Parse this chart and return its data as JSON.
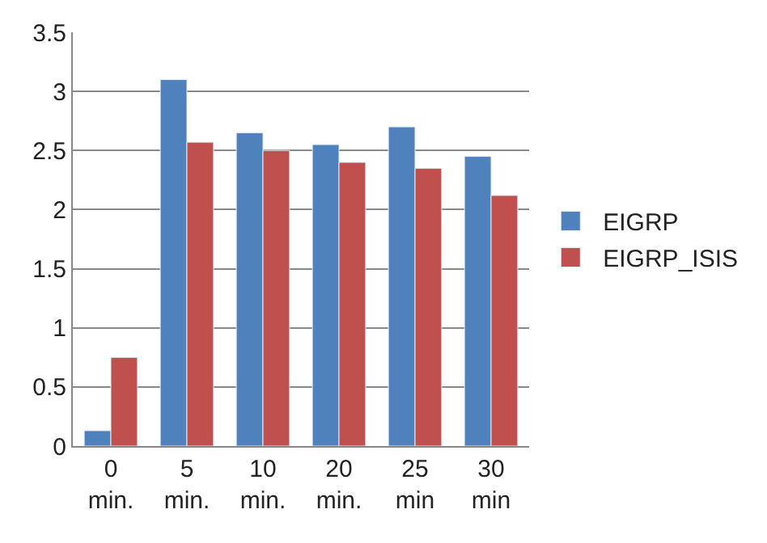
{
  "chart_data": {
    "type": "bar",
    "categories": [
      "0 min.",
      "5 min.",
      "10 min.",
      "20 min.",
      "25 min",
      "30 min"
    ],
    "series": [
      {
        "name": "EIGRP",
        "color": "#4f81bd",
        "values": [
          0.13,
          3.1,
          2.65,
          2.55,
          2.7,
          2.45
        ]
      },
      {
        "name": "EIGRP_ISIS",
        "color": "#c0504d",
        "values": [
          0.75,
          2.57,
          2.5,
          2.4,
          2.35,
          2.12
        ]
      }
    ],
    "ylim": [
      0,
      3.5
    ],
    "yticks": [
      0,
      0.5,
      1,
      1.5,
      2,
      2.5,
      3,
      3.5
    ],
    "grid": "y",
    "legend": "right"
  }
}
